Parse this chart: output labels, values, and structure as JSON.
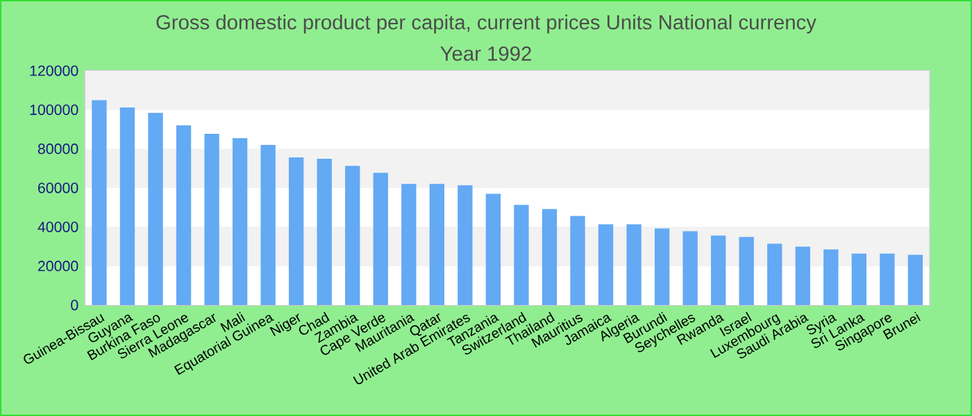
{
  "chart_data": {
    "type": "bar",
    "title": "Gross domestic product per capita, current prices Units National currency",
    "subtitle": "Year 1992",
    "categories": [
      "Guinea-Bissau",
      "Guyana",
      "Burkina Faso",
      "Sierra Leone",
      "Madagascar",
      "Mali",
      "Equatorial Guinea",
      "Niger",
      "Chad",
      "Zambia",
      "Cape Verde",
      "Mauritania",
      "Qatar",
      "United Arab Emirates",
      "Tanzania",
      "Switzerland",
      "Thailand",
      "Mauritius",
      "Jamaica",
      "Algeria",
      "Burundi",
      "Seychelles",
      "Rwanda",
      "Israel",
      "Luxembourg",
      "Saudi Arabia",
      "Syria",
      "Sri Lanka",
      "Singapore",
      "Brunei"
    ],
    "values": [
      104900,
      101200,
      98400,
      92000,
      87700,
      85500,
      82000,
      75600,
      74900,
      71300,
      67700,
      62000,
      62000,
      61300,
      57000,
      51300,
      49200,
      45600,
      41400,
      41400,
      39200,
      37800,
      35600,
      34900,
      31400,
      29900,
      28500,
      26400,
      26400,
      25700
    ],
    "color": "#63a9f4",
    "ylim": [
      0,
      120000
    ],
    "yticks": [
      0,
      20000,
      40000,
      60000,
      80000,
      100000,
      120000
    ],
    "grid": "y"
  }
}
